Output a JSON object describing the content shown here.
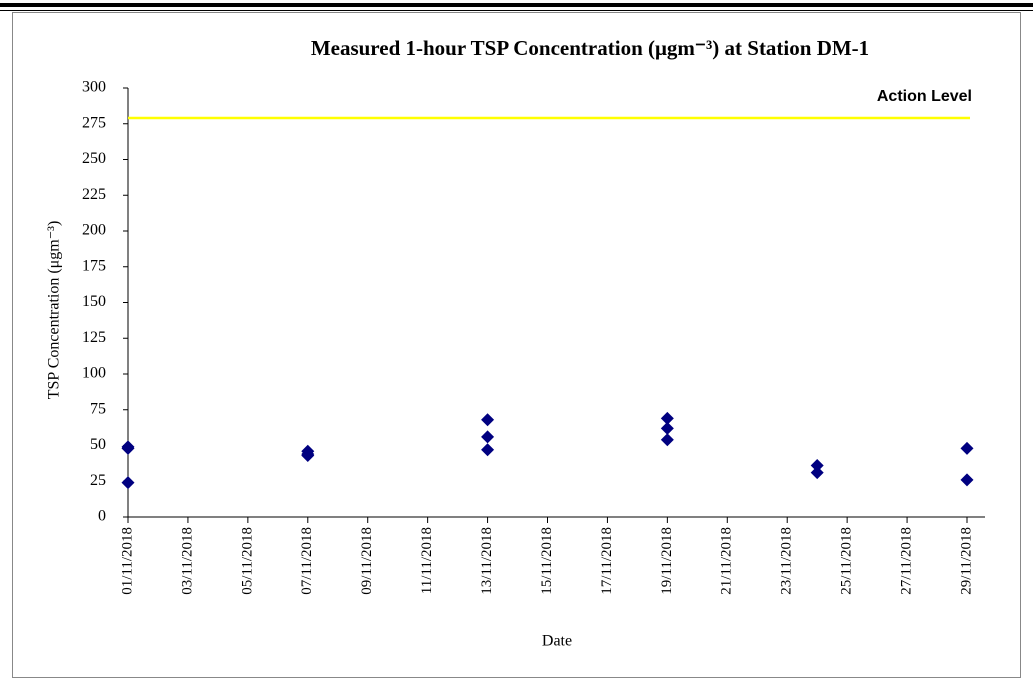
{
  "chart_data": {
    "type": "scatter",
    "title": "Measured 1-hour TSP Concentration (μgm⁻³) at Station DM-1",
    "x_label": "Date",
    "y_label": "TSP Concentration (μgm⁻³)",
    "x": [
      "01/11/2018",
      "01/11/2018",
      "01/11/2018",
      "07/11/2018",
      "07/11/2018",
      "07/11/2018",
      "13/11/2018",
      "13/11/2018",
      "13/11/2018",
      "19/11/2018",
      "19/11/2018",
      "19/11/2018",
      "24/11/2018",
      "24/11/2018",
      "29/11/2018",
      "29/11/2018"
    ],
    "values": [
      49,
      48,
      24,
      46,
      44,
      43,
      68,
      56,
      47,
      69,
      62,
      54,
      36,
      31,
      48,
      26
    ],
    "color": "#000080",
    "xlim": [
      "01/11/2018",
      "29/11/2018"
    ],
    "xticks": [
      "01/11/2018",
      "03/11/2018",
      "05/11/2018",
      "07/11/2018",
      "09/11/2018",
      "11/11/2018",
      "13/11/2018",
      "15/11/2018",
      "17/11/2018",
      "19/11/2018",
      "21/11/2018",
      "23/11/2018",
      "25/11/2018",
      "27/11/2018",
      "29/11/2018"
    ],
    "ylim": [
      0,
      300
    ],
    "yticks": [
      0,
      25,
      50,
      75,
      100,
      125,
      150,
      175,
      200,
      225,
      250,
      275,
      300
    ],
    "reference_line": {
      "label": "Action Level",
      "value": 279,
      "color": "#ffff00"
    }
  }
}
